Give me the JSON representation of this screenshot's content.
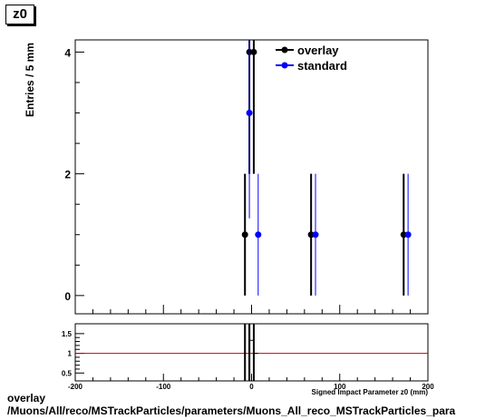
{
  "chart_data": {
    "type": "scatter",
    "title": "z0",
    "ylabel": "Entries / 5 mm",
    "xlabel": "Signed Impact Parameter z0 (mm)",
    "xlim": [
      -200,
      200
    ],
    "ylim": [
      -0.3,
      4.2
    ],
    "x_ticks": [
      -200,
      -100,
      0,
      100,
      200
    ],
    "y_ticks": [
      0,
      2,
      4
    ],
    "series": [
      {
        "name": "overlay",
        "color": "#000000",
        "points": [
          {
            "x": -7.5,
            "y": 1
          },
          {
            "x": -2.5,
            "y": 4
          },
          {
            "x": 2.5,
            "y": 4
          },
          {
            "x": 67.5,
            "y": 1
          },
          {
            "x": 172.5,
            "y": 1
          }
        ]
      },
      {
        "name": "standard",
        "color": "#0000ff",
        "points": [
          {
            "x": -2.5,
            "y": 3
          },
          {
            "x": 7.5,
            "y": 1
          },
          {
            "x": 72.5,
            "y": 1
          },
          {
            "x": 177.5,
            "y": 1
          }
        ]
      }
    ],
    "ratio_panel": {
      "ylim": [
        0.3,
        1.75
      ],
      "y_ticks": [
        0.5,
        1,
        1.5
      ],
      "reference_line": 1,
      "reference_color": "#cc0000"
    },
    "legend_position": "top-right"
  },
  "footer": {
    "line1": "overlay",
    "line2": "/Muons/All/reco/MSTrackParticles/parameters/Muons_All_reco_MSTrackParticles_para"
  }
}
